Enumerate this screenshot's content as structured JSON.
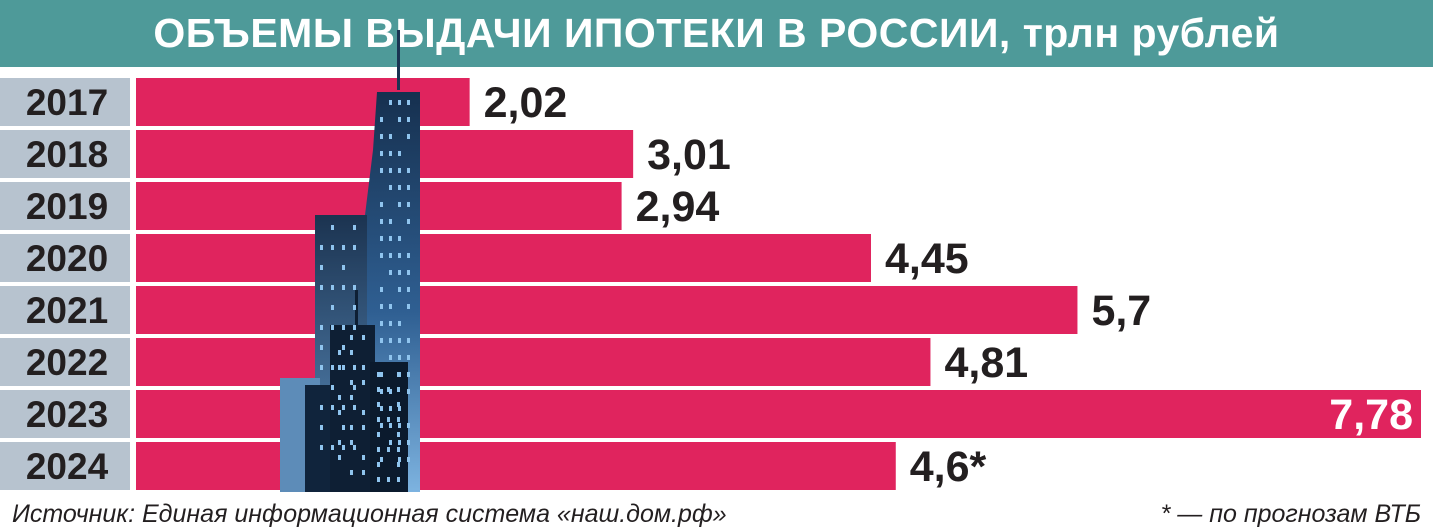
{
  "colors": {
    "header_bg": "#4e9a99",
    "bar": "#e0245e",
    "year_cell": "#b7c3cf",
    "text_dark": "#231f20",
    "label_on_bar": "#ffffff"
  },
  "chart_data": {
    "type": "bar",
    "orientation": "horizontal",
    "title": "ОБЪЕМЫ ВЫДАЧИ ИПОТЕКИ В РОССИИ, трлн рублей",
    "categories": [
      "2017",
      "2018",
      "2019",
      "2020",
      "2021",
      "2022",
      "2023",
      "2024"
    ],
    "values": [
      2.02,
      3.01,
      2.94,
      4.45,
      5.7,
      4.81,
      7.78,
      4.6
    ],
    "value_labels": [
      "2,02",
      "3,01",
      "2,94",
      "4,45",
      "5,7",
      "4,81",
      "7,78",
      "4,6*"
    ],
    "xlim": [
      0,
      7.78
    ],
    "grid": false,
    "legend": "none"
  },
  "footer": {
    "source": "Источник: Единая информационная система «наш.дом.рф»",
    "footnote": "* — по прогнозам ВТБ"
  }
}
